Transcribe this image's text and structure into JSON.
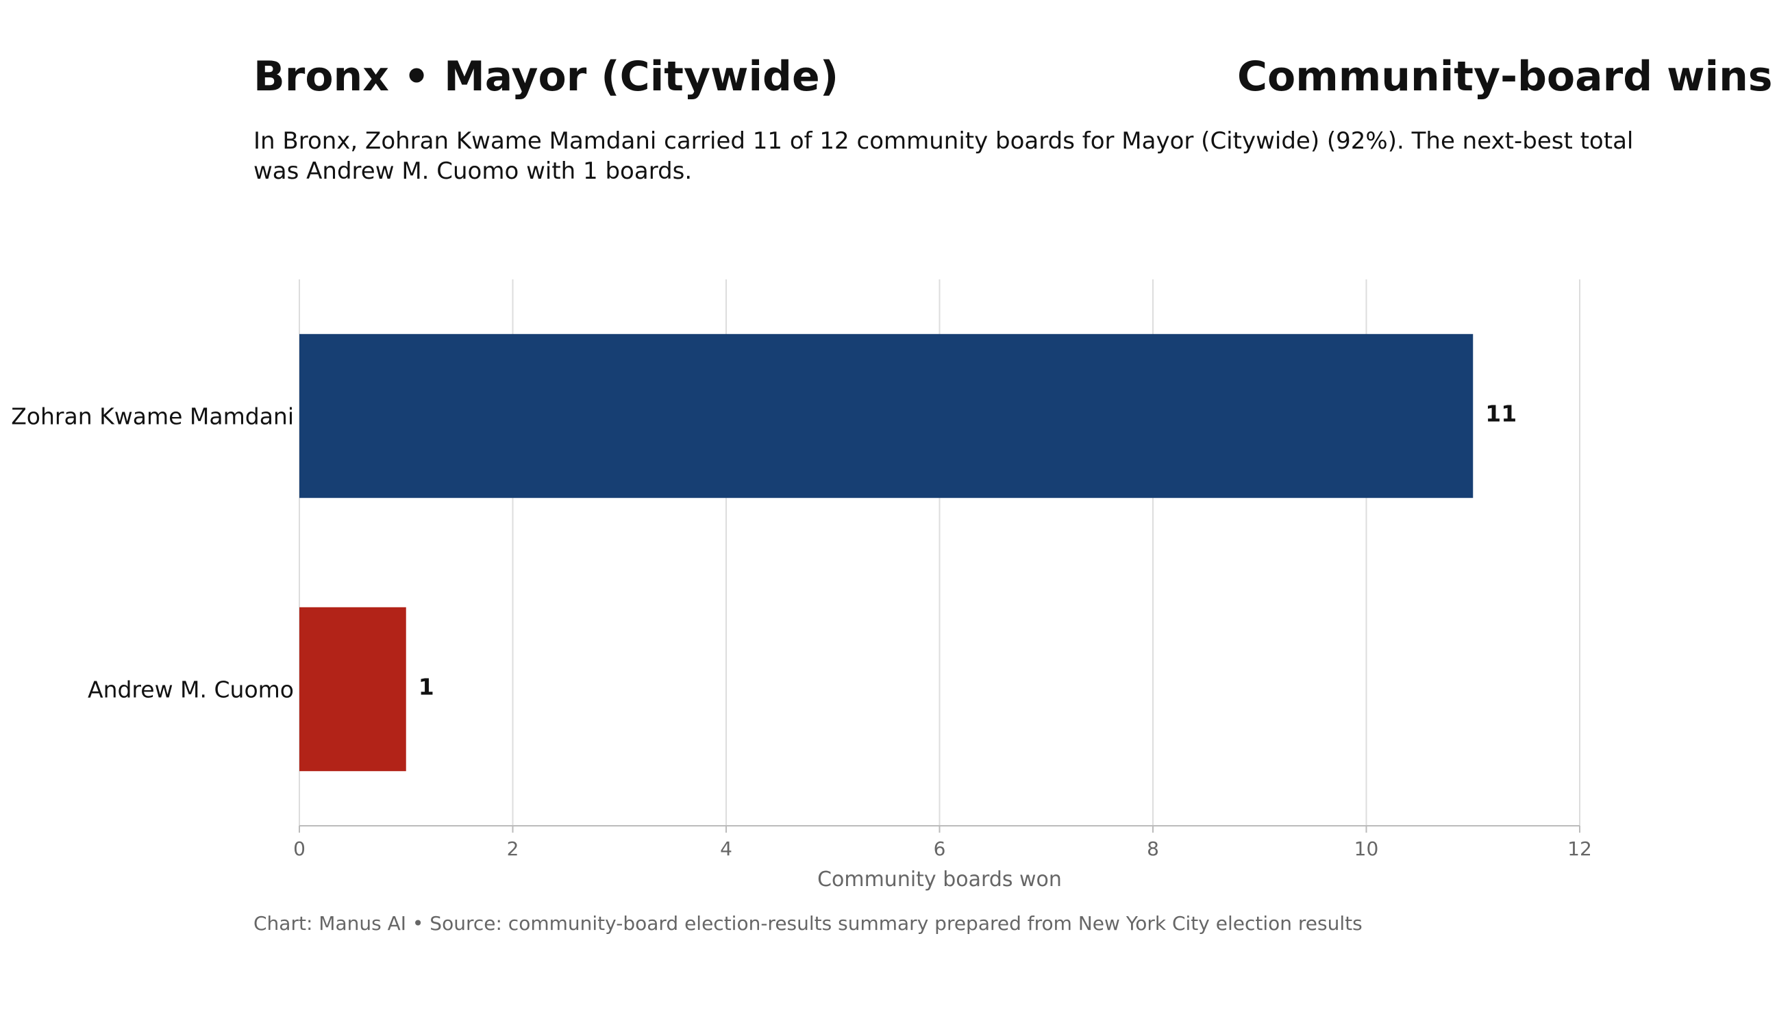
{
  "header": {
    "title": "Bronx • Mayor (Citywide)",
    "title_right": "Community-board wins",
    "subtitle": "In Bronx, Zohran Kwame Mamdani carried 11 of 12 community boards for Mayor (Citywide) (92%). The next-best total was Andrew M. Cuomo with 1 boards."
  },
  "footer": {
    "source": "Chart: Manus AI • Source: community-board election-results summary prepared from New York City election results"
  },
  "chart_data": {
    "type": "bar",
    "orientation": "horizontal",
    "categories": [
      "Zohran Kwame Mamdani",
      "Andrew M. Cuomo"
    ],
    "values": [
      11,
      1
    ],
    "colors": [
      "#173f73",
      "#b22318"
    ],
    "xlabel": "Community boards won",
    "ylabel": "",
    "xlim": [
      0,
      12
    ],
    "xticks": [
      0,
      2,
      4,
      6,
      8,
      10,
      12
    ],
    "grid": true,
    "data_labels": [
      "11",
      "1"
    ]
  }
}
